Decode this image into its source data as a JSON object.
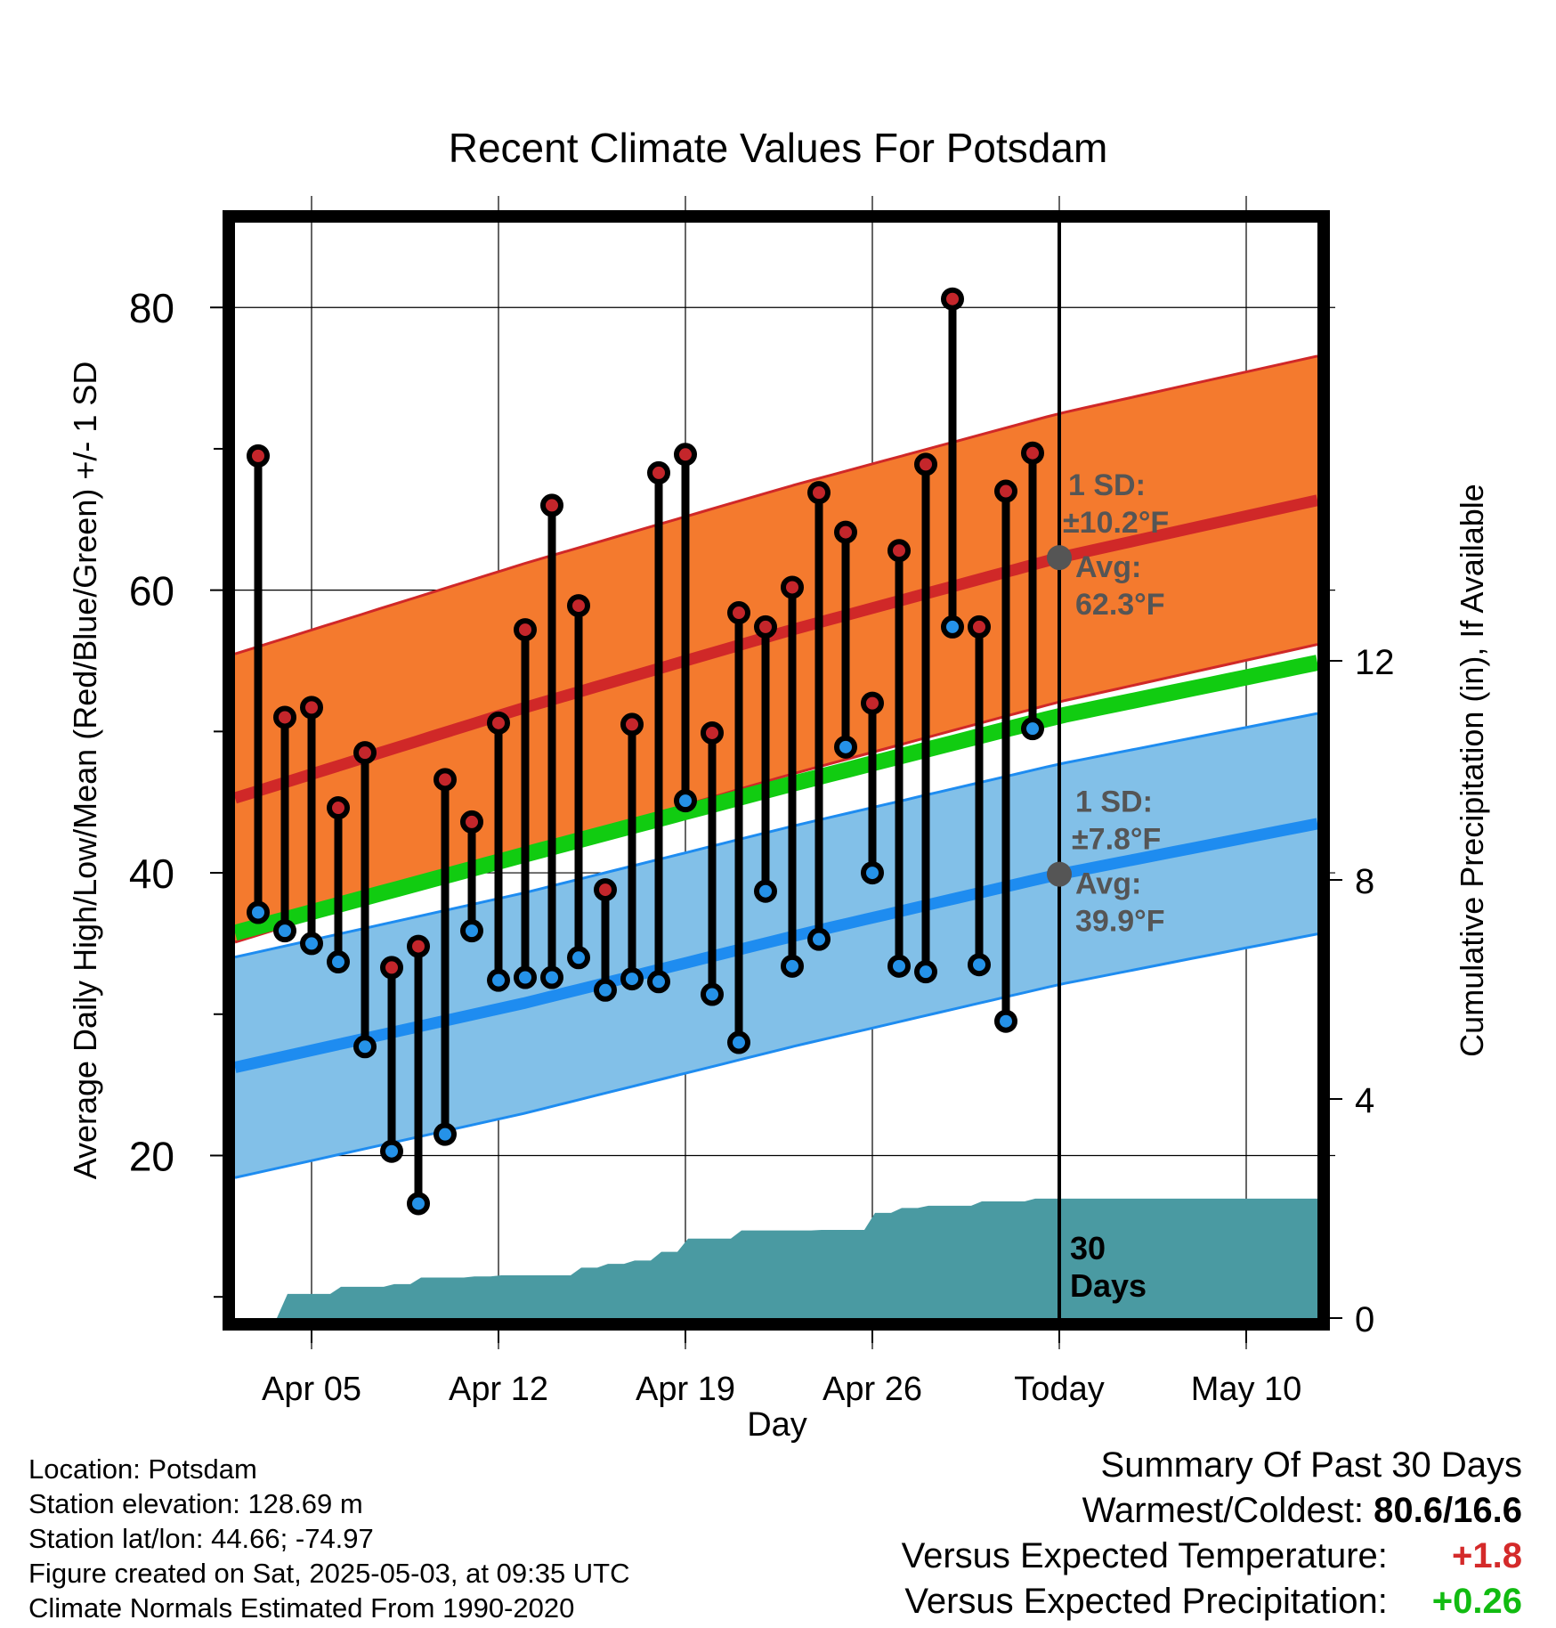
{
  "chart_data": {
    "type": "line",
    "title": "Recent Climate Values For Potsdam",
    "xlabel": "Day",
    "ylabel": "Average Daily High/Low/Mean (Red/Blue/Green) +/- 1 SD",
    "y2label": "Cumulative Precipitation (in), If Available",
    "x_tick_labels": [
      "Apr 05",
      "Apr 12",
      "Apr 19",
      "Apr 26",
      "Today",
      "May 10"
    ],
    "x_tick_day_index": [
      2,
      9,
      16,
      23,
      30,
      37
    ],
    "ylim": [
      8.5,
      86
    ],
    "y_ticks": [
      20,
      40,
      60,
      80
    ],
    "y2lim": [
      0,
      20
    ],
    "y2_ticks": [
      0,
      4,
      8,
      12
    ],
    "grid": true,
    "daily_high": [
      69.5,
      51.0,
      51.7,
      44.6,
      48.5,
      33.3,
      34.8,
      46.6,
      43.6,
      50.6,
      57.2,
      66.0,
      58.9,
      38.8,
      50.5,
      68.3,
      69.6,
      49.9,
      58.4,
      57.4,
      60.2,
      66.9,
      64.1,
      52.0,
      62.8,
      68.9,
      80.6,
      57.4,
      67.0,
      69.7
    ],
    "daily_low": [
      37.2,
      35.9,
      35.0,
      33.7,
      27.7,
      20.3,
      16.6,
      21.5,
      35.9,
      32.4,
      32.6,
      32.6,
      34.0,
      31.7,
      32.5,
      32.3,
      45.1,
      31.4,
      28.0,
      38.7,
      33.4,
      35.3,
      48.9,
      40.0,
      33.4,
      33.0,
      57.4,
      33.5,
      29.5,
      50.2
    ],
    "normal_high": {
      "x": [
        0,
        10,
        20,
        30,
        40
      ],
      "values": [
        45.8,
        51.7,
        57.2,
        62.3,
        66.5
      ]
    },
    "normal_high_sd": 10.2,
    "normal_low": {
      "x": [
        0,
        10,
        20,
        30,
        40
      ],
      "values": [
        26.6,
        30.8,
        35.5,
        39.9,
        43.6
      ]
    },
    "normal_low_sd": 7.8,
    "normal_mean": {
      "x": [
        0,
        10,
        20,
        30,
        40
      ],
      "values": [
        36.2,
        41.3,
        46.3,
        51.1,
        55.0
      ]
    },
    "cumulative_precip": [
      0.0,
      0.44,
      0.44,
      0.57,
      0.57,
      0.62,
      0.74,
      0.74,
      0.76,
      0.78,
      0.78,
      0.78,
      0.92,
      0.99,
      1.05,
      1.21,
      1.45,
      1.45,
      1.6,
      1.6,
      1.6,
      1.61,
      1.61,
      1.92,
      2.01,
      2.05,
      2.05,
      2.13,
      2.13,
      2.18,
      2.18
    ],
    "today_index": 30,
    "annotations": {
      "high_sd_label": "1 SD:",
      "high_sd_value": "±10.2°F",
      "high_avg_label": "Avg:",
      "high_avg_value": "62.3°F",
      "low_sd_label": "1 SD:",
      "low_sd_value": "±7.8°F",
      "low_avg_label": "Avg:",
      "low_avg_value": "39.9°F",
      "period_label": "30",
      "period_unit": "Days"
    },
    "colors": {
      "high_band": "#f47a2e",
      "high_line": "#d02828",
      "low_band": "#82c0e8",
      "low_line": "#1e8cf0",
      "mean_line": "#11cc11",
      "precip": "#4a9aa2",
      "high_marker": "#c4262b",
      "low_marker": "#2592e8",
      "annotation_text": "#555555"
    }
  },
  "info": {
    "location": "Location: Potsdam",
    "elevation": "Station elevation: 128.69 m",
    "latlon": "Station lat/lon: 44.66; -74.97",
    "created": "Figure created on Sat, 2025-05-03, at 09:35 UTC",
    "normals": "Climate Normals Estimated From 1990-2020"
  },
  "summary": {
    "title": "Summary Of Past 30 Days",
    "extremes_label": "Warmest/Coldest:",
    "extremes_value": "80.6/16.6",
    "temp_label": "Versus Expected Temperature:",
    "temp_value": "+1.8",
    "temp_color": "#d42a2a",
    "precip_label": "Versus Expected Precipitation:",
    "precip_value": "+0.26",
    "precip_color": "#11bb11"
  }
}
